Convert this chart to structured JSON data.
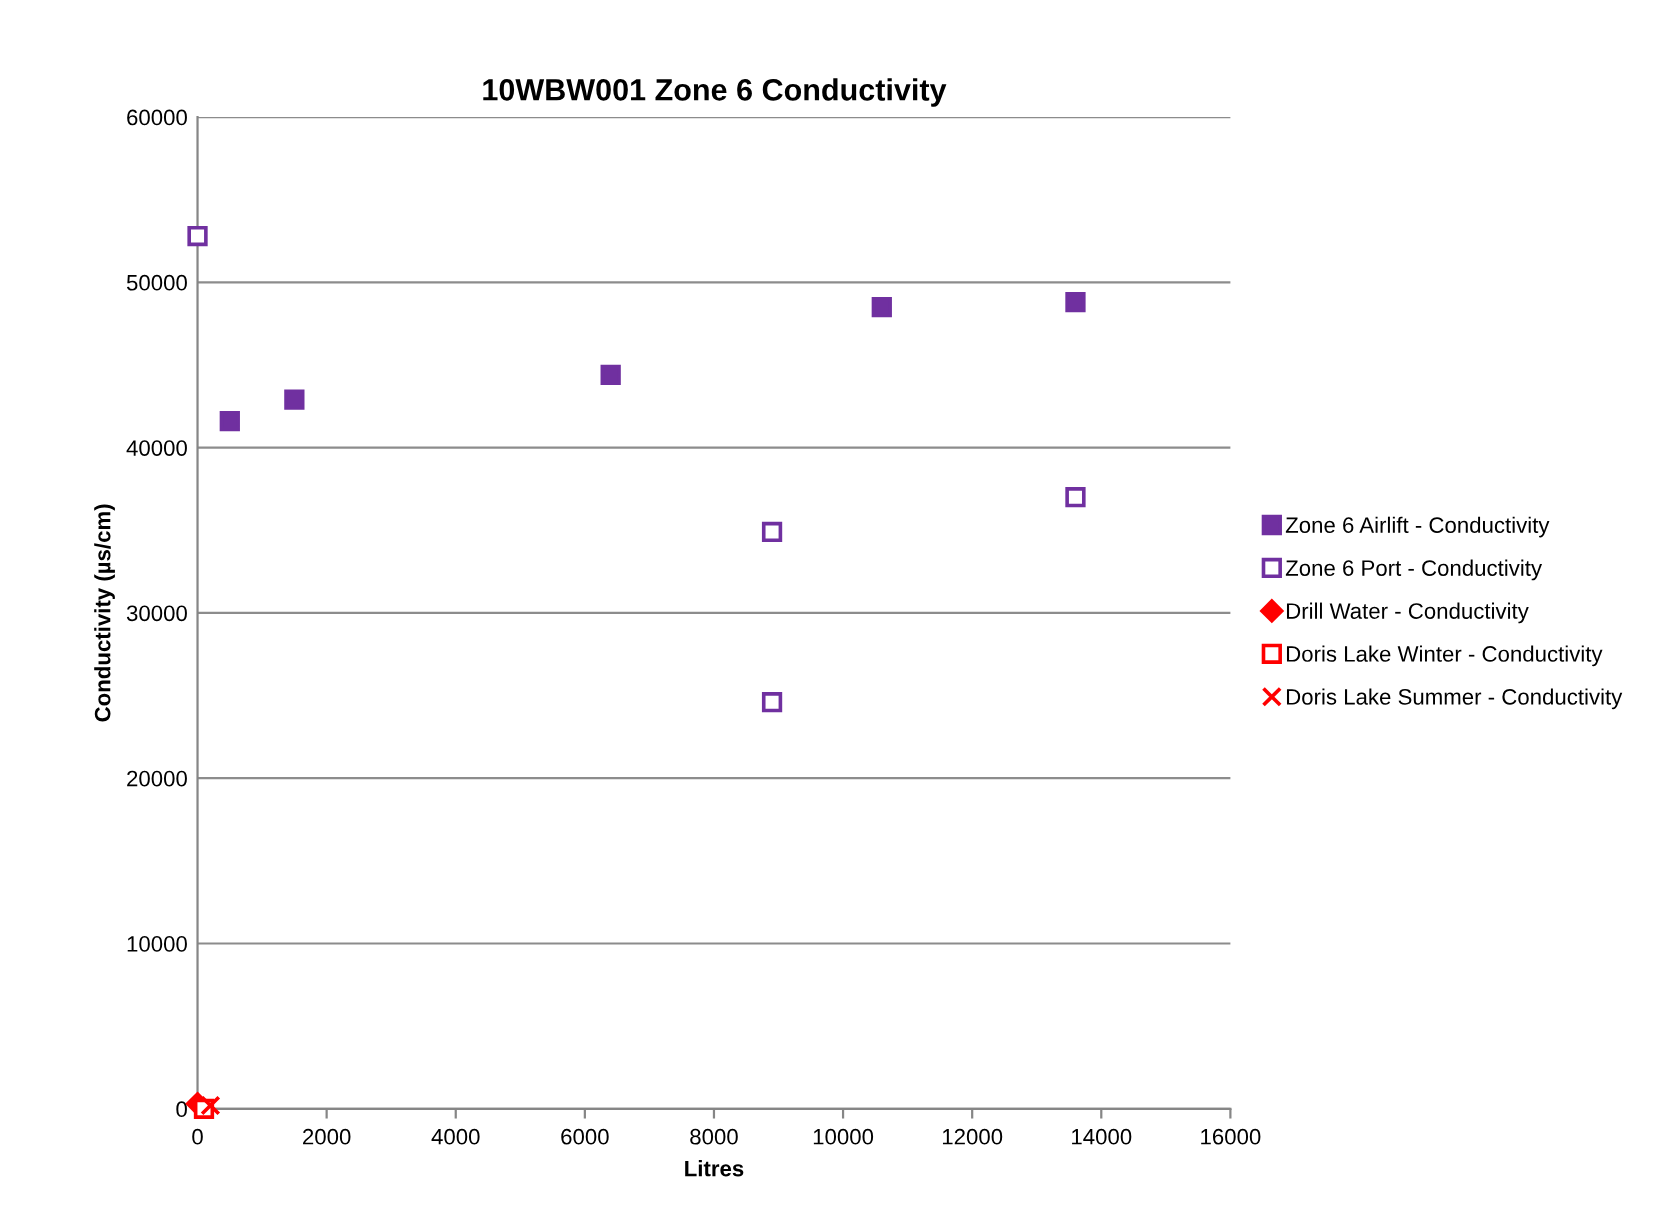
{
  "chart_data": {
    "type": "scatter",
    "title": "10WBW001 Zone 6 Conductivity",
    "xlabel": "Litres",
    "ylabel": "Conductivity (µs/cm)",
    "xlim": [
      0,
      16000
    ],
    "xticks": [
      0,
      2000,
      4000,
      6000,
      8000,
      10000,
      12000,
      14000,
      16000
    ],
    "ylim": [
      0,
      60000
    ],
    "yticks": [
      0,
      10000,
      20000,
      30000,
      40000,
      50000,
      60000
    ],
    "grid": "y",
    "legend": "right",
    "series": [
      {
        "name": "Zone 6 Airlift - Conductivity",
        "color": "#7030a0",
        "marker": "square",
        "x": [
          500,
          1500,
          6400,
          10600,
          13600
        ],
        "values": [
          41600,
          42900,
          44400,
          48500,
          48800
        ]
      },
      {
        "name": "Zone 6 Port - Conductivity",
        "color": "#7030a0",
        "marker": "square",
        "x": [
          0,
          8900,
          8900,
          13600
        ],
        "values": [
          52800,
          34900,
          24600,
          37000
        ]
      },
      {
        "name": "Drill Water - Conductivity",
        "color": "#ff0000",
        "marker": "diamond",
        "x": [
          0
        ],
        "values": [
          300
        ]
      },
      {
        "name": "Doris Lake Winter - Conductivity",
        "color": "#ff0000",
        "marker": "square",
        "x": [
          100
        ],
        "values": [
          0
        ]
      },
      {
        "name": "Doris Lake Summer - Conductivity",
        "color": "#ff0000",
        "marker": "cross",
        "x": [
          200
        ],
        "values": [
          200
        ]
      }
    ]
  }
}
